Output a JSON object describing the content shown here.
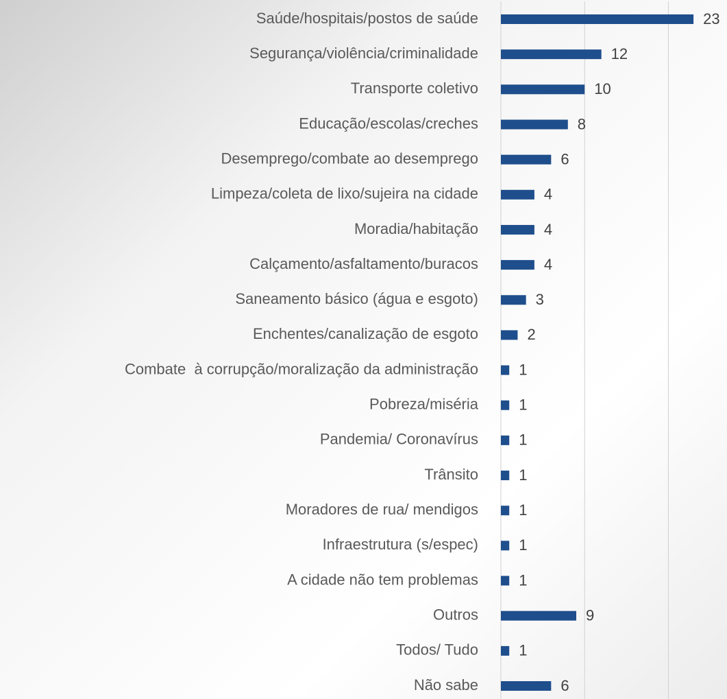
{
  "chart_data": {
    "type": "bar",
    "orientation": "horizontal",
    "categories": [
      "Saúde/hospitais/postos de saúde",
      "Segurança/violência/criminalidade",
      "Transporte coletivo",
      "Educação/escolas/creches",
      "Desemprego/combate ao desemprego",
      "Limpeza/coleta de lixo/sujeira na cidade",
      "Moradia/habitação",
      "Calçamento/asfaltamento/buracos",
      "Saneamento básico (água e esgoto)",
      "Enchentes/canalização de esgoto",
      "Combate  à corrupção/moralização da administração",
      "Pobreza/miséria",
      "Pandemia/ Coronavírus",
      "Trânsito",
      "Moradores de rua/ mendigos",
      "Infraestrutura (s/espec)",
      "A cidade não tem problemas",
      "Outros",
      "Todos/ Tudo",
      "Não sabe"
    ],
    "values": [
      23,
      12,
      10,
      8,
      6,
      4,
      4,
      4,
      3,
      2,
      1,
      1,
      1,
      1,
      1,
      1,
      1,
      9,
      1,
      6
    ],
    "color": "#1f4e8c",
    "xlim": [
      0,
      27
    ],
    "xticks": [
      0,
      10,
      20
    ],
    "grid": true,
    "tick_labels": false
  }
}
